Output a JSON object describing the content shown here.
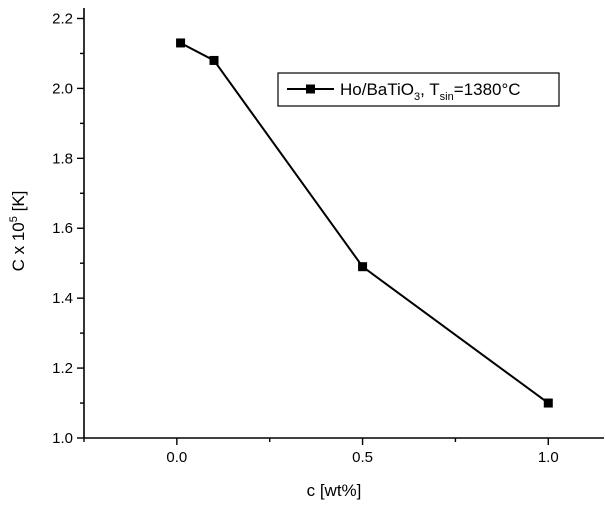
{
  "chart_data": {
    "type": "line",
    "xlabel": "c [wt%]",
    "ylabel": {
      "base": "C x 10",
      "exponent": "5",
      "unit": " [K]"
    },
    "xlim": [
      -0.25,
      1.15
    ],
    "ylim": [
      1.0,
      2.23
    ],
    "x_ticks": [
      0.0,
      0.5,
      1.0
    ],
    "x_tick_labels": [
      "0.0",
      "0.5",
      "1.0"
    ],
    "y_ticks": [
      1.0,
      1.2,
      1.4,
      1.6,
      1.8,
      2.0,
      2.2
    ],
    "y_tick_labels": [
      "1.0",
      "1.2",
      "1.4",
      "1.6",
      "1.8",
      "2.0",
      "2.2"
    ],
    "grid": false,
    "legend_position": "top-right",
    "series": [
      {
        "name": "Ho/BaTiO3, Tsin=1380°C",
        "legend_parts": {
          "a": "Ho/BaTiO",
          "a_sub": "3",
          "b": ", T",
          "b_sub": "sin",
          "c": "=1380°C"
        },
        "marker": "square",
        "color": "#000000",
        "x": [
          0.01,
          0.1,
          0.5,
          1.0
        ],
        "y": [
          2.13,
          2.08,
          1.49,
          1.1
        ]
      }
    ]
  }
}
